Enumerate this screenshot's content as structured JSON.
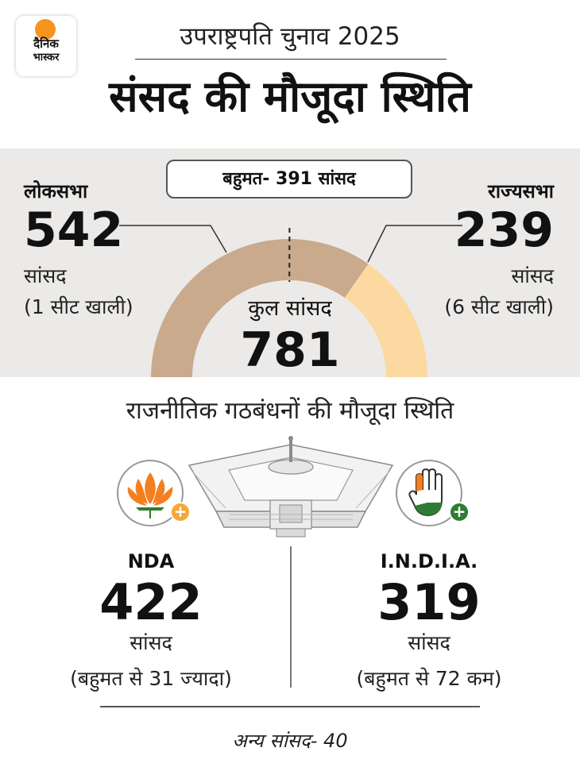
{
  "brand": {
    "logo_line1": "दैनिक",
    "logo_line2": "भास्कर"
  },
  "header": {
    "kicker": "उपराष्ट्रपति चुनाव 2025",
    "headline": "संसद की मौजूदा स्थिति"
  },
  "majority_label": "बहुमत- 391 सांसद",
  "lok_sabha": {
    "name": "लोकसभा",
    "count": "542",
    "unit": "सांसद",
    "note": "(1 सीट खाली)"
  },
  "rajya_sabha": {
    "name": "राज्यसभा",
    "count": "239",
    "unit": "सांसद",
    "note": "(6 सीट खाली)"
  },
  "total": {
    "label": "कुल सांसद",
    "count": "781"
  },
  "section_title": "राजनीतिक गठबंधनों की मौजूदा स्थिति",
  "nda": {
    "name": "NDA",
    "count": "422",
    "unit": "सांसद",
    "note": "(बहुमत से 31 ज्यादा)"
  },
  "india": {
    "name": "I.N.D.I.A.",
    "count": "319",
    "unit": "सांसद",
    "note": "(बहुमत से 72 कम)"
  },
  "others": "अन्य सांसद- 40",
  "colors": {
    "lok_sabha": "#c9aa8c",
    "rajya_sabha": "#fcd9a0",
    "band": "#eceae8",
    "nda_plus": "#f7a733",
    "india_plus": "#2e7d32"
  },
  "chart_data": {
    "type": "pie",
    "style": "half-donut",
    "categories": [
      "लोकसभा",
      "राज्यसभा"
    ],
    "values": [
      542,
      239
    ],
    "total": 781,
    "majority": 391
  }
}
